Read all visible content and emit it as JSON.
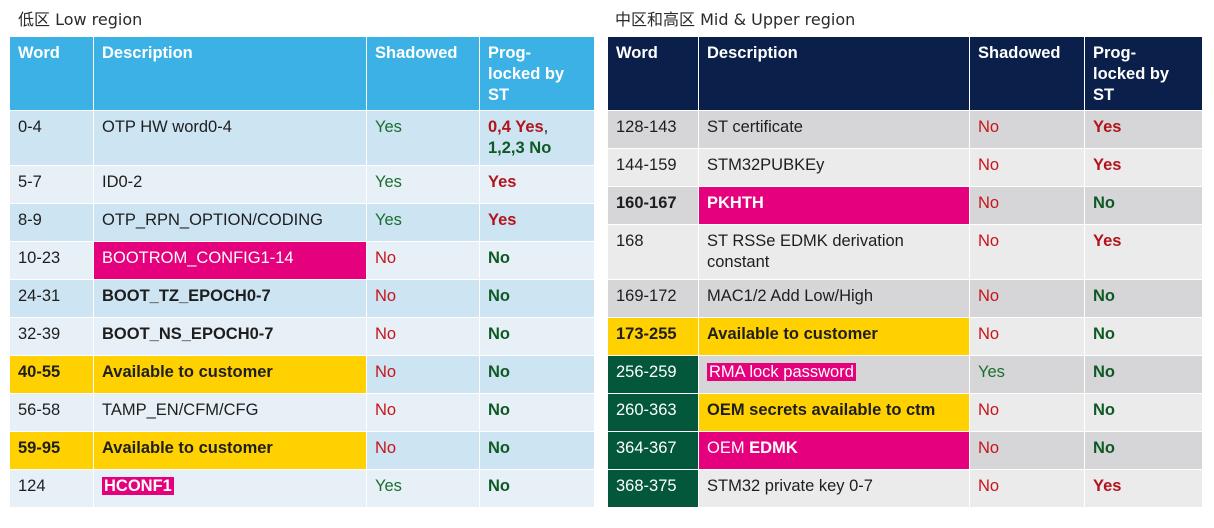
{
  "low_region": {
    "title": "低区 Low region",
    "headers": {
      "word": "Word",
      "description": "Description",
      "shadowed": "Shadowed",
      "prog_line1": "Prog-",
      "prog_line2": "locked by",
      "prog_line3": "ST"
    },
    "rows": [
      {
        "word": "0-4",
        "description": "OTP HW word0-4",
        "shadowed": "Yes",
        "prog_a": "0,4 Yes",
        "prog_sep": ",",
        "prog_b": "1,2,3 No"
      },
      {
        "word": "5-7",
        "description": "ID0-2",
        "shadowed": "Yes",
        "prog": "Yes"
      },
      {
        "word": "8-9",
        "description": "OTP_RPN_OPTION/CODING",
        "shadowed": "Yes",
        "prog": "Yes"
      },
      {
        "word": "10-23",
        "description": "BOOTROM_CONFIG1-14",
        "shadowed": "No",
        "prog": "No"
      },
      {
        "word": "24-31",
        "description": "BOOT_TZ_EPOCH0-7",
        "shadowed": "No",
        "prog": "No"
      },
      {
        "word": "32-39",
        "description": "BOOT_NS_EPOCH0-7",
        "shadowed": "No",
        "prog": "No"
      },
      {
        "word": "40-55",
        "description": "Available to customer",
        "shadowed": "No",
        "prog": "No"
      },
      {
        "word": "56-58",
        "description": "TAMP_EN/CFM/CFG",
        "shadowed": "No",
        "prog": "No"
      },
      {
        "word": "59-95",
        "description": "Available to customer",
        "shadowed": "No",
        "prog": "No"
      },
      {
        "word": "124",
        "description": "HCONF1",
        "shadowed": "Yes",
        "prog": "No"
      }
    ]
  },
  "mid_region": {
    "title": "中区和高区 Mid & Upper region",
    "headers": {
      "word": "Word",
      "description": "Description",
      "shadowed": "Shadowed",
      "prog_line1": "Prog-",
      "prog_line2": "locked by",
      "prog_line3": "ST"
    },
    "rows": [
      {
        "word": "128-143",
        "description": "ST certificate",
        "shadowed": "No",
        "prog": "Yes"
      },
      {
        "word": "144-159",
        "description": "STM32PUBKEy",
        "shadowed": "No",
        "prog": "Yes"
      },
      {
        "word": "160-167",
        "description": "PKHTH",
        "shadowed": "No",
        "prog": "No"
      },
      {
        "word": "168",
        "description_line1": "ST RSSe EDMK derivation",
        "description_line2": "constant",
        "shadowed": "No",
        "prog": "Yes"
      },
      {
        "word": "169-172",
        "description": "MAC1/2 Add Low/High",
        "shadowed": "No",
        "prog": "No"
      },
      {
        "word": "173-255",
        "description": "Available to customer",
        "shadowed": "No",
        "prog": "No"
      },
      {
        "word": "256-259",
        "description": "RMA lock password",
        "shadowed": "Yes",
        "prog": "No"
      },
      {
        "word": "260-363",
        "description": "OEM secrets available to ctm",
        "shadowed": "No",
        "prog": "No"
      },
      {
        "word": "364-367",
        "description_a": "OEM ",
        "description_b": "EDMK",
        "shadowed": "No",
        "prog": "No"
      },
      {
        "word": "368-375",
        "description": "STM32 private key 0-7",
        "shadowed": "No",
        "prog": "Yes"
      }
    ]
  },
  "colors": {
    "low_header": "#3bb1e6",
    "mid_header": "#0b1f4b",
    "highlight_yellow": "#ffd100",
    "highlight_magenta": "#e5007e",
    "highlight_green": "#03573a",
    "yes_red": "#b3131b",
    "no_green": "#0f5a24"
  }
}
